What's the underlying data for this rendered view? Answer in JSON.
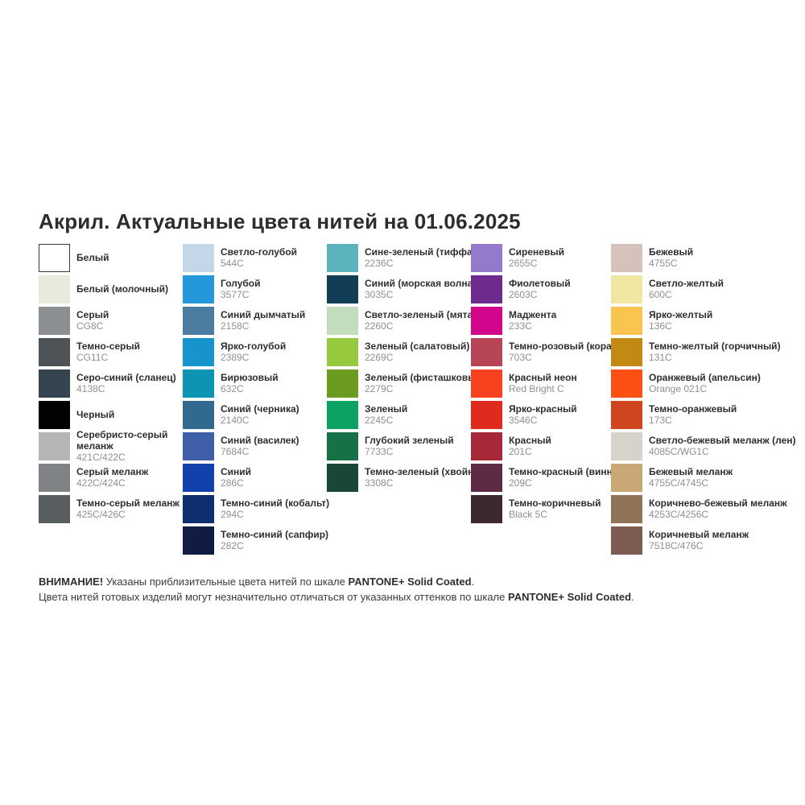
{
  "title": "Акрил. Актуальные цвета нитей на 01.06.2025",
  "columns": [
    {
      "items": [
        {
          "name": "Белый",
          "code": "",
          "color": "#ffffff",
          "border": true
        },
        {
          "name": "Белый (молочный)",
          "code": "",
          "color": "#eaeadc"
        },
        {
          "name": "Серый",
          "code": "CG8C",
          "color": "#8c8f91"
        },
        {
          "name": "Темно-серый",
          "code": "CG11C",
          "color": "#4e5357"
        },
        {
          "name": "Серо-синий (сланец)",
          "code": "4138C",
          "color": "#35444f"
        },
        {
          "name": "Черный",
          "code": "",
          "color": "#020202"
        },
        {
          "name": "Серебристо-серый\nмеланж",
          "code": "421C/422C",
          "color": "#b4b7b6"
        },
        {
          "name": "Серый меланж",
          "code": "422C/424C",
          "color": "#7f8385"
        },
        {
          "name": "Темно-серый меланж",
          "code": "425C/426C",
          "color": "#585d60"
        }
      ]
    },
    {
      "items": [
        {
          "name": "Светло-голубой",
          "code": "544C",
          "color": "#c3d7e9"
        },
        {
          "name": "Голубой",
          "code": "3577C",
          "color": "#2598dc"
        },
        {
          "name": "Синий дымчатый",
          "code": "2158C",
          "color": "#4c7da0"
        },
        {
          "name": "Ярко-голубой",
          "code": "2389C",
          "color": "#1894cc"
        },
        {
          "name": "Бирюзовый",
          "code": "632C",
          "color": "#0d93b4"
        },
        {
          "name": "Синий (черника)",
          "code": "2140C",
          "color": "#31698f"
        },
        {
          "name": "Синий (василек)",
          "code": "7684C",
          "color": "#3f60a9"
        },
        {
          "name": "Синий",
          "code": "286C",
          "color": "#1240ad"
        },
        {
          "name": "Темно-синий (кобальт)",
          "code": "294C",
          "color": "#0e2f6d"
        },
        {
          "name": "Темно-синий (сапфир)",
          "code": "282C",
          "color": "#111c45"
        }
      ]
    },
    {
      "items": [
        {
          "name": "Сине-зеленый (тиффани)",
          "code": "2236C",
          "color": "#5cb3bd"
        },
        {
          "name": "Синий (морская волна)",
          "code": "3035C",
          "color": "#123e55"
        },
        {
          "name": "Светло-зеленый (мята)",
          "code": "2260C",
          "color": "#c2ddbe"
        },
        {
          "name": "Зеленый (салатовый)",
          "code": "2269C",
          "color": "#96c93e"
        },
        {
          "name": "Зеленый (фисташковый)",
          "code": "2279C",
          "color": "#6b9c20"
        },
        {
          "name": "Зеленый",
          "code": "2245C",
          "color": "#0ca263"
        },
        {
          "name": "Глубокий зеленый",
          "code": "7733C",
          "color": "#177147"
        },
        {
          "name": "Темно-зеленый (хвойный)",
          "code": "3308C",
          "color": "#1a4639"
        }
      ]
    },
    {
      "items": [
        {
          "name": "Сиреневый",
          "code": "2655C",
          "color": "#9579cb"
        },
        {
          "name": "Фиолетовый",
          "code": "2603C",
          "color": "#6e2b8e"
        },
        {
          "name": "Маджента",
          "code": "233C",
          "color": "#d2068c"
        },
        {
          "name": "Темно-розовый (коралл)",
          "code": "703C",
          "color": "#b84557"
        },
        {
          "name": "Красный неон",
          "code": "Red Bright C",
          "color": "#f8411f"
        },
        {
          "name": "Ярко-красный",
          "code": "3546C",
          "color": "#df2a20"
        },
        {
          "name": "Красный",
          "code": "201C",
          "color": "#a62839"
        },
        {
          "name": "Темно-красный (винный)",
          "code": "209C",
          "color": "#5f2b44"
        },
        {
          "name": "Темно-коричневый",
          "code": "Black 5C",
          "color": "#3c2830"
        }
      ]
    },
    {
      "items": [
        {
          "name": "Бежевый",
          "code": "4755C",
          "color": "#d5c2ba"
        },
        {
          "name": "Светло-желтый",
          "code": "600C",
          "color": "#f0e8a2"
        },
        {
          "name": "Ярко-желтый",
          "code": "136C",
          "color": "#fac450"
        },
        {
          "name": "Темно-желтый (горчичный)",
          "code": "131C",
          "color": "#c28a12"
        },
        {
          "name": "Оранжевый (апельсин)",
          "code": "Orange 021C",
          "color": "#fb4f14"
        },
        {
          "name": "Темно-оранжевый",
          "code": "173C",
          "color": "#cf4520"
        },
        {
          "name": "Светло-бежевый меланж (лен)",
          "code": "4085C/WG1C",
          "color": "#d6d3ca"
        },
        {
          "name": "Бежевый меланж",
          "code": "4755C/4745C",
          "color": "#c9a876"
        },
        {
          "name": "Коричнево-бежевый меланж",
          "code": "4253C/4256C",
          "color": "#8f7556"
        },
        {
          "name": "Коричневый меланж",
          "code": "7518C/476C",
          "color": "#7c5c53"
        }
      ]
    }
  ],
  "footer": {
    "line1_bold1": "ВНИМАНИЕ!",
    "line1_text": " Указаны приблизительные цвета нитей по шкале ",
    "line1_bold2": "PANTONE+ Solid Coated",
    "line1_end": ".",
    "line2_text": "Цвета нитей готовых изделий могут незначительно отличаться от указанных оттенков по шкале ",
    "line2_bold": "PANTONE+ Solid Coated",
    "line2_end": "."
  }
}
